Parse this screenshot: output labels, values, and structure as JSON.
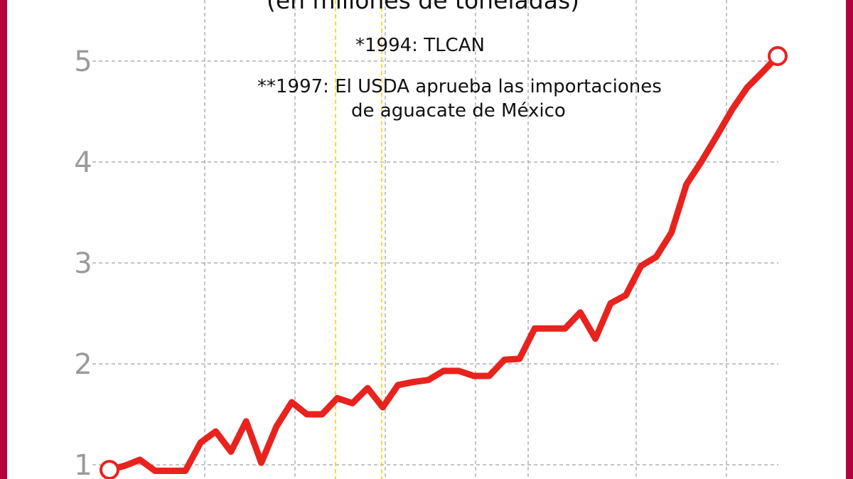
{
  "chart_data": {
    "type": "line",
    "title": "",
    "subtitle": "(en millones de toneladas)",
    "xlabel": "",
    "ylabel": "",
    "ylim": [
      0.95,
      5.5
    ],
    "yticks": [
      "1",
      "2",
      "3",
      "4",
      "5"
    ],
    "grid": true,
    "annotations": [
      "*1994: TLCAN",
      "**1997: El USDA aprueba las importaciones",
      "de aguacate de México"
    ],
    "colors": {
      "line": "#e8231e",
      "grid": "#888888",
      "highlight": "#f2d200",
      "border": "#b5003f",
      "tick": "#9a9a9a"
    },
    "series": [
      {
        "values": [
          0.95,
          0.99,
          1.05,
          0.94,
          0.94,
          0.94,
          1.22,
          1.33,
          1.13,
          1.43,
          1.02,
          1.38,
          1.62,
          1.5,
          1.5,
          1.66,
          1.61,
          1.76,
          1.57,
          1.79,
          1.82,
          1.84,
          1.93,
          1.93,
          1.88,
          1.88,
          2.04,
          2.05,
          2.35,
          2.35,
          2.35,
          2.51,
          2.25,
          2.6,
          2.68,
          2.97,
          3.06,
          3.3,
          3.78,
          4.01,
          4.26,
          4.52,
          4.74,
          4.89,
          5.05
        ]
      }
    ]
  }
}
